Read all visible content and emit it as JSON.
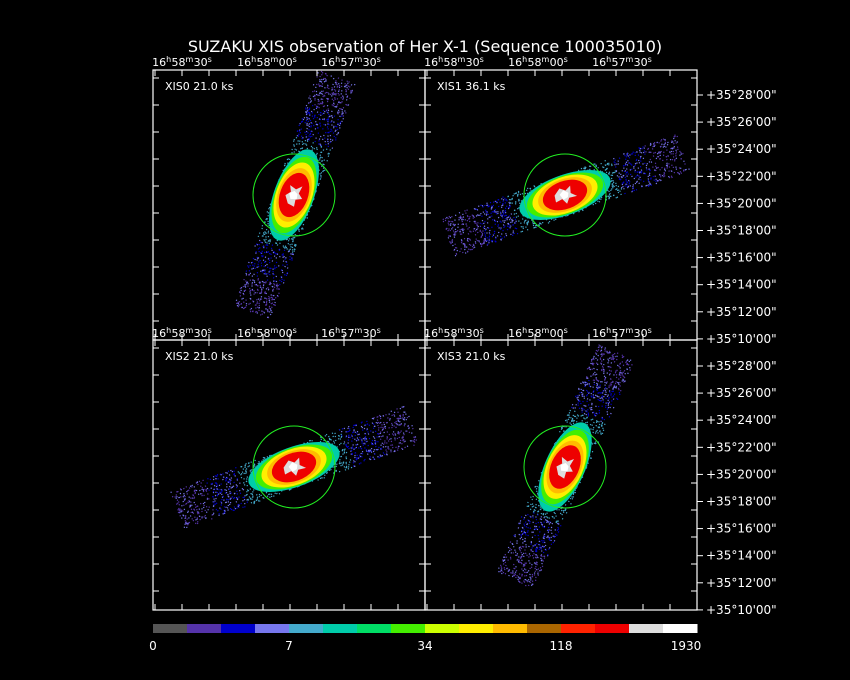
{
  "title": "SUZAKU XIS observation of Her X-1  (Sequence 100035010)",
  "ra_ticks": [
    "16h58m30s",
    "16h58m00s",
    "16h57m30s"
  ],
  "dec_ticks": [
    "+35°28'00\"",
    "+35°26'00\"",
    "+35°24'00\"",
    "+35°22'00\"",
    "+35°20'00\"",
    "+35°18'00\"",
    "+35°16'00\"",
    "+35°14'00\"",
    "+35°12'00\"",
    "+35°10'00\""
  ],
  "panels": [
    {
      "label": "XIS0 21.0 ks",
      "angle_deg": 70
    },
    {
      "label": "XIS1 36.1 ks",
      "angle_deg": 20
    },
    {
      "label": "XIS2 21.0 ks",
      "angle_deg": 20
    },
    {
      "label": "XIS3 21.0 ks",
      "angle_deg": 66
    }
  ],
  "colorbar": {
    "ticks": [
      "0",
      "7",
      "34",
      "118",
      "1930"
    ],
    "colors": [
      "#555555",
      "#5533aa",
      "#0000cc",
      "#7777ee",
      "#44aacc",
      "#00ccaa",
      "#00dd66",
      "#44ee00",
      "#ccff00",
      "#ffee00",
      "#ffbb00",
      "#aa6600",
      "#ff2200",
      "#ee0000",
      "#dddddd",
      "#ffffff"
    ]
  }
}
